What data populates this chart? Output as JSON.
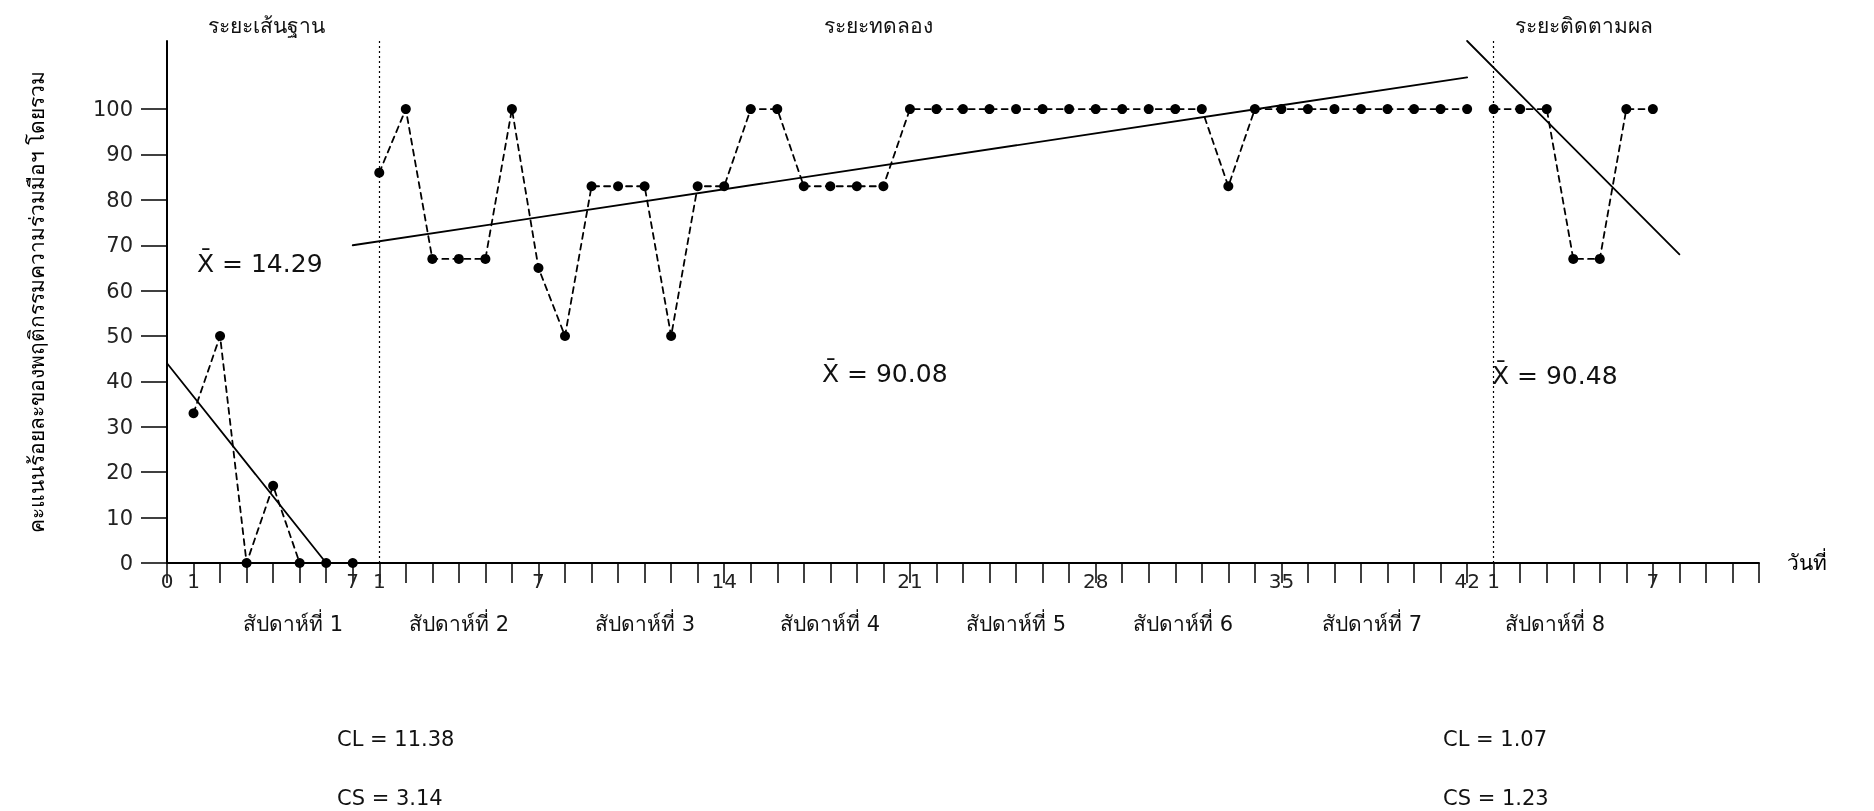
{
  "chart_data": {
    "type": "line",
    "xlabel": "วันที่",
    "ylabel": "คะแนนร้อยละของพฤติกรรมความร่วมมือฯ โดยรวม",
    "categories": [
      "0",
      "1",
      null,
      null,
      null,
      null,
      null,
      "7",
      "1",
      null,
      null,
      null,
      null,
      null,
      "7",
      null,
      null,
      null,
      null,
      null,
      null,
      "14",
      null,
      null,
      null,
      null,
      null,
      null,
      "21",
      null,
      null,
      null,
      null,
      null,
      null,
      "28",
      null,
      null,
      null,
      null,
      null,
      null,
      "35",
      null,
      null,
      null,
      null,
      null,
      null,
      "42",
      "1",
      null,
      null,
      null,
      null,
      null,
      "7",
      null,
      null,
      null,
      null
    ],
    "ylim": [
      0,
      115
    ],
    "yticks": [
      0,
      10,
      20,
      30,
      40,
      50,
      60,
      70,
      80,
      90,
      100
    ],
    "marker": "circle",
    "line_style": "dashed",
    "series": [
      {
        "color": "#000000",
        "values": [
          null,
          33,
          50,
          0,
          17,
          0,
          0,
          0,
          null,
          null,
          null,
          null,
          null,
          null,
          null,
          null,
          null,
          null,
          null,
          null,
          null,
          null,
          null,
          null,
          null,
          null,
          null,
          null,
          null,
          null,
          null,
          null,
          null,
          null,
          null,
          null,
          null,
          null,
          null,
          null,
          null,
          null,
          null,
          null,
          null,
          null,
          null,
          null,
          null,
          null,
          null,
          null,
          null,
          null,
          null,
          null,
          null,
          null,
          null,
          null,
          null
        ]
      },
      {
        "color": "#000000",
        "values": [
          null,
          null,
          null,
          null,
          null,
          null,
          null,
          null,
          86,
          100,
          67,
          67,
          67,
          100,
          65,
          50,
          83,
          83,
          83,
          50,
          83,
          83,
          100,
          100,
          83,
          83,
          83,
          83,
          100,
          100,
          100,
          100,
          100,
          100,
          100,
          100,
          100,
          100,
          100,
          100,
          83,
          100,
          100,
          100,
          100,
          100,
          100,
          100,
          100,
          100,
          null,
          null,
          null,
          null,
          null,
          null,
          null,
          null,
          null,
          null,
          null
        ]
      },
      {
        "color": "#000000",
        "values": [
          null,
          null,
          null,
          null,
          null,
          null,
          null,
          null,
          null,
          null,
          null,
          null,
          null,
          null,
          null,
          null,
          null,
          null,
          null,
          null,
          null,
          null,
          null,
          null,
          null,
          null,
          null,
          null,
          null,
          null,
          null,
          null,
          null,
          null,
          null,
          null,
          null,
          null,
          null,
          null,
          null,
          null,
          null,
          null,
          null,
          null,
          null,
          null,
          null,
          null,
          100,
          100,
          100,
          67,
          67,
          100,
          100,
          null,
          null,
          null,
          null
        ]
      },
      {
        "color": "#000000",
        "marker": "none",
        "line_style": "solid",
        "values": [
          44,
          null,
          null,
          null,
          null,
          null,
          0,
          null,
          null,
          null,
          null,
          null,
          null,
          null,
          null,
          null,
          null,
          null,
          null,
          null,
          null,
          null,
          null,
          null,
          null,
          null,
          null,
          null,
          null,
          null,
          null,
          null,
          null,
          null,
          null,
          null,
          null,
          null,
          null,
          null,
          null,
          null,
          null,
          null,
          null,
          null,
          null,
          null,
          null,
          null,
          null,
          null,
          null,
          null,
          null,
          null,
          null,
          null,
          null,
          null,
          null
        ]
      },
      {
        "color": "#000000",
        "marker": "none",
        "line_style": "solid",
        "values": [
          null,
          null,
          null,
          null,
          null,
          null,
          null,
          70,
          null,
          null,
          null,
          null,
          null,
          null,
          null,
          null,
          null,
          null,
          null,
          null,
          null,
          null,
          null,
          null,
          null,
          null,
          null,
          null,
          null,
          null,
          null,
          null,
          null,
          null,
          null,
          null,
          null,
          null,
          null,
          null,
          null,
          null,
          null,
          null,
          null,
          null,
          null,
          null,
          null,
          107,
          null,
          null,
          null,
          null,
          null,
          null,
          null,
          null,
          null,
          null,
          null
        ]
      },
      {
        "color": "#000000",
        "marker": "none",
        "line_style": "solid",
        "values": [
          null,
          null,
          null,
          null,
          null,
          null,
          null,
          null,
          null,
          null,
          null,
          null,
          null,
          null,
          null,
          null,
          null,
          null,
          null,
          null,
          null,
          null,
          null,
          null,
          null,
          null,
          null,
          null,
          null,
          null,
          null,
          null,
          null,
          null,
          null,
          null,
          null,
          null,
          null,
          null,
          null,
          null,
          null,
          null,
          null,
          null,
          null,
          null,
          null,
          115,
          null,
          null,
          null,
          null,
          null,
          null,
          null,
          68,
          null,
          null,
          null
        ]
      }
    ],
    "annotations": [
      "ระยะเส้นฐาน",
      "ระยะทดลอง",
      "ระยะติดตามผล",
      "สัปดาห์ที่ 1",
      "สัปดาห์ที่ 2",
      "สัปดาห์ที่ 3",
      "สัปดาห์ที่ 4",
      "สัปดาห์ที่ 5",
      "สัปดาห์ที่ 6",
      "สัปดาห์ที่ 7",
      "สัปดาห์ที่ 8",
      "CL = 11.38",
      "CS = 3.14",
      "CL = 1.07",
      "CS = 1.23",
      "X̄ = 14.29",
      "X̄ = 90.08",
      "X̄ = 90.48"
    ]
  }
}
